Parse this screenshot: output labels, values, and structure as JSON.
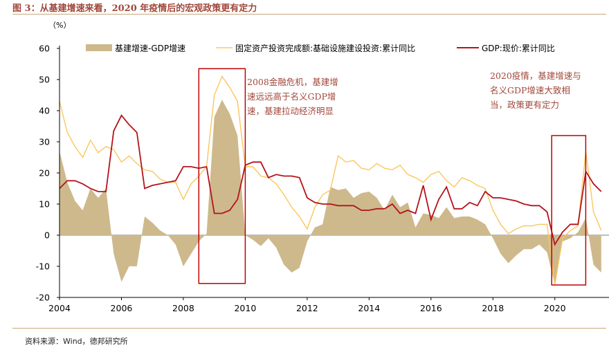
{
  "figure": {
    "title": "图 3：从基建增速来看，2020 年疫情后的宏观政策更有定力",
    "source": "资料来源：Wind，德邦研究所"
  },
  "colors": {
    "area": "#CDB98C",
    "line_fai": "#FBC65C",
    "line_gdp": "#B5121B",
    "annotation": "#A1473A",
    "box": "#C00000"
  },
  "chart_data": {
    "type": "area",
    "title": "",
    "unit_label": "（%）",
    "xlabel": "",
    "ylabel": "",
    "xlim": [
      2004,
      2021.75
    ],
    "ylim": [
      -20,
      60
    ],
    "yticks": [
      60,
      50,
      40,
      30,
      20,
      10,
      0,
      -10,
      -20
    ],
    "xticks": [
      2004,
      2006,
      2008,
      2010,
      2012,
      2014,
      2016,
      2018,
      2020
    ],
    "legend_position": "top",
    "series": [
      {
        "name": "基建增速-GDP增速",
        "type": "area",
        "x": [
          2004,
          2004.25,
          2004.5,
          2004.75,
          2005,
          2005.25,
          2005.5,
          2005.75,
          2006,
          2006.25,
          2006.5,
          2006.75,
          2007,
          2007.25,
          2007.5,
          2007.75,
          2008,
          2008.25,
          2008.5,
          2008.75,
          2009,
          2009.25,
          2009.5,
          2009.75,
          2010,
          2010.25,
          2010.5,
          2010.75,
          2011,
          2011.25,
          2011.5,
          2011.75,
          2012,
          2012.25,
          2012.5,
          2012.75,
          2013,
          2013.25,
          2013.5,
          2013.75,
          2014,
          2014.25,
          2014.5,
          2014.75,
          2015,
          2015.25,
          2015.5,
          2015.75,
          2016,
          2016.25,
          2016.5,
          2016.75,
          2017,
          2017.25,
          2017.5,
          2017.75,
          2018,
          2018.25,
          2018.5,
          2018.75,
          2019,
          2019.25,
          2019.5,
          2019.75,
          2020,
          2020.25,
          2020.5,
          2020.75,
          2021,
          2021.25,
          2021.5
        ],
        "values": [
          27,
          17,
          11,
          8,
          15,
          12,
          15,
          -6,
          -15,
          -10,
          -10,
          6,
          4,
          1.5,
          0,
          -3,
          -10,
          -6,
          -2,
          0.5,
          38,
          43.5,
          39,
          32,
          0,
          -1.5,
          -3.5,
          -1,
          -4,
          -9.5,
          -12,
          -10.5,
          -2,
          2.5,
          3.5,
          15.5,
          14.5,
          15,
          12,
          13.5,
          14,
          12,
          8,
          13,
          9,
          10.5,
          2.5,
          7,
          6.5,
          5.5,
          9,
          5.5,
          6,
          6,
          5,
          3.5,
          -1,
          -6,
          -9,
          -6.5,
          -4.5,
          -4.5,
          -3,
          -5.5,
          -16,
          -2,
          -1,
          1,
          5.5,
          -9.5,
          -12
        ]
      },
      {
        "name": "固定资产投资完成额:基础设施建设投资:累计同比",
        "type": "line",
        "x": [
          2004,
          2004.25,
          2004.5,
          2004.75,
          2005,
          2005.25,
          2005.5,
          2005.75,
          2006,
          2006.25,
          2006.5,
          2006.75,
          2007,
          2007.25,
          2007.5,
          2007.75,
          2008,
          2008.25,
          2008.5,
          2008.75,
          2009,
          2009.25,
          2009.5,
          2009.75,
          2010,
          2010.25,
          2010.5,
          2010.75,
          2011,
          2011.25,
          2011.5,
          2011.75,
          2012,
          2012.25,
          2012.5,
          2012.75,
          2013,
          2013.25,
          2013.5,
          2013.75,
          2014,
          2014.25,
          2014.5,
          2014.75,
          2015,
          2015.25,
          2015.5,
          2015.75,
          2016,
          2016.25,
          2016.5,
          2016.75,
          2017,
          2017.25,
          2017.5,
          2017.75,
          2018,
          2018.25,
          2018.5,
          2018.75,
          2019,
          2019.25,
          2019.5,
          2019.75,
          2020,
          2020.25,
          2020.5,
          2020.75,
          2021,
          2021.25,
          2021.5
        ],
        "values": [
          43,
          33,
          28.5,
          25,
          30.5,
          26.5,
          28.5,
          27.5,
          23.5,
          25.5,
          23,
          21,
          20.5,
          18,
          17,
          17,
          11.5,
          16.5,
          19,
          22,
          45,
          51,
          47.5,
          43,
          22,
          22,
          19,
          18.5,
          16.5,
          13,
          9,
          6,
          2,
          9,
          13,
          14.5,
          25.5,
          23.5,
          24,
          21.5,
          21,
          23,
          21.5,
          21,
          22.5,
          19.5,
          18.5,
          17,
          19.5,
          20.5,
          17.5,
          15.5,
          18.5,
          17.5,
          16,
          15,
          8,
          3.5,
          0.5,
          2,
          3,
          3,
          3.5,
          3.5,
          -16,
          -1,
          1.5,
          3,
          27,
          7.5,
          1.5
        ]
      },
      {
        "name": "GDP:现价:累计同比",
        "type": "line",
        "x": [
          2004,
          2004.25,
          2004.5,
          2004.75,
          2005,
          2005.25,
          2005.5,
          2005.75,
          2006,
          2006.25,
          2006.5,
          2006.75,
          2007,
          2007.25,
          2007.5,
          2007.75,
          2008,
          2008.25,
          2008.5,
          2008.75,
          2009,
          2009.25,
          2009.5,
          2009.75,
          2010,
          2010.25,
          2010.5,
          2010.75,
          2011,
          2011.25,
          2011.5,
          2011.75,
          2012,
          2012.25,
          2012.5,
          2012.75,
          2013,
          2013.25,
          2013.5,
          2013.75,
          2014,
          2014.25,
          2014.5,
          2014.75,
          2015,
          2015.25,
          2015.5,
          2015.75,
          2016,
          2016.25,
          2016.5,
          2016.75,
          2017,
          2017.25,
          2017.5,
          2017.75,
          2018,
          2018.25,
          2018.5,
          2018.75,
          2019,
          2019.25,
          2019.5,
          2019.75,
          2020,
          2020.25,
          2020.5,
          2020.75,
          2021,
          2021.25,
          2021.5
        ],
        "values": [
          15,
          17.5,
          17.5,
          16.5,
          15,
          14,
          14,
          33.5,
          38.5,
          35.5,
          33,
          15,
          16,
          16.5,
          17,
          17.5,
          22,
          22,
          21.5,
          22,
          7,
          7,
          8,
          11.5,
          22.5,
          23.5,
          23.5,
          18.5,
          19.5,
          19,
          19,
          18.5,
          12,
          10.5,
          10,
          10,
          9.5,
          9.5,
          9.5,
          8,
          8,
          8.5,
          8.5,
          10,
          7,
          8,
          7,
          16,
          5,
          11.5,
          15.5,
          8.5,
          8.5,
          10.5,
          9.5,
          14,
          12,
          12,
          11.5,
          11,
          10,
          9.5,
          9.5,
          7.5,
          -3,
          1,
          3.5,
          3.5,
          20.5,
          16.5,
          14
        ]
      }
    ],
    "annotations": [
      {
        "id": "crisis-2008",
        "lines": [
          "2008金融危机，基建增",
          "速远远高于名义GDP增",
          "速，基建拉动经济明显"
        ],
        "box_x": [
          2008.5,
          2010
        ],
        "box_y": [
          -15.5,
          53.5
        ]
      },
      {
        "id": "covid-2020",
        "lines": [
          "2020疫情，基建增速与",
          "名义GDP增速大致相",
          "当，政策更有定力"
        ],
        "box_x": [
          2019.9,
          2021
        ],
        "box_y": [
          -16,
          32
        ]
      }
    ]
  }
}
